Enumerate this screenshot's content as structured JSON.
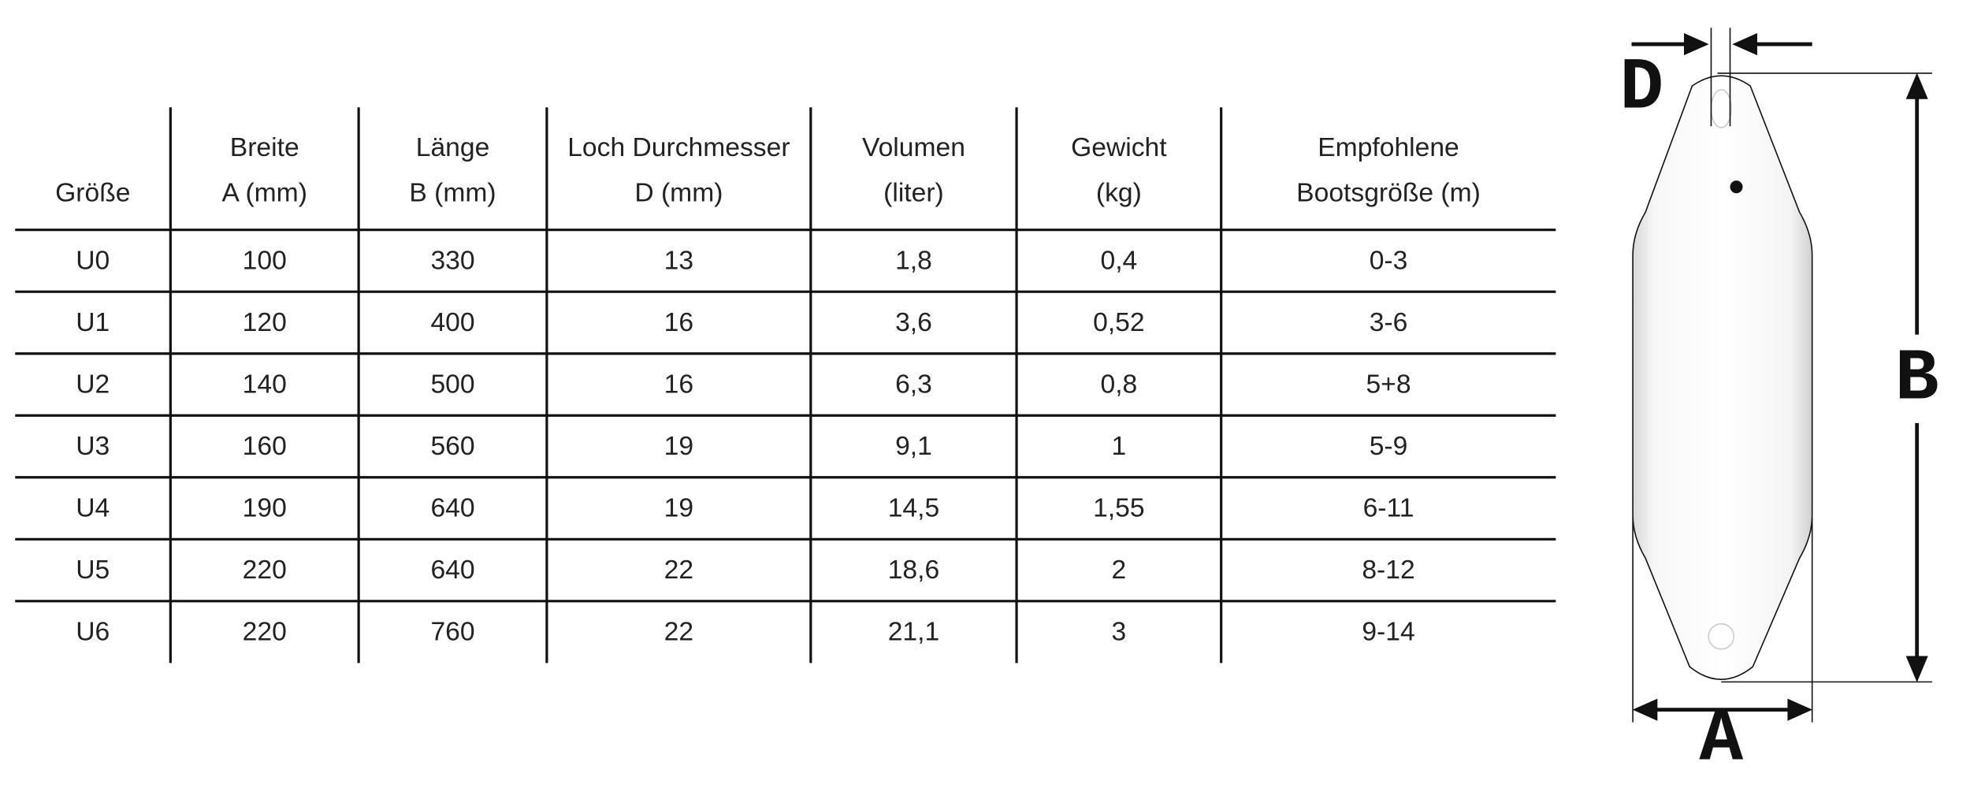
{
  "table": {
    "header": [
      [
        "Größe"
      ],
      [
        "Breite",
        "A (mm)"
      ],
      [
        "Länge",
        "B (mm)"
      ],
      [
        "Loch Durchmesser",
        "D (mm)"
      ],
      [
        "Volumen",
        "(liter)"
      ],
      [
        "Gewicht",
        "(kg)"
      ],
      [
        "Empfohlene",
        "Bootsgröße (m)"
      ]
    ],
    "rows": [
      [
        "U0",
        "100",
        "330",
        "13",
        "1,8",
        "0,4",
        "0-3"
      ],
      [
        "U1",
        "120",
        "400",
        "16",
        "3,6",
        "0,52",
        "3-6"
      ],
      [
        "U2",
        "140",
        "500",
        "16",
        "6,3",
        "0,8",
        "5+8"
      ],
      [
        "U3",
        "160",
        "560",
        "19",
        "9,1",
        "1",
        "5-9"
      ],
      [
        "U4",
        "190",
        "640",
        "19",
        "14,5",
        "1,55",
        "6-11"
      ],
      [
        "U5",
        "220",
        "640",
        "22",
        "18,6",
        "2",
        "8-12"
      ],
      [
        "U6",
        "220",
        "760",
        "22",
        "21,1",
        "3",
        "9-14"
      ]
    ]
  },
  "diagram": {
    "labels": {
      "D": "D",
      "B": "B",
      "A": "A"
    }
  }
}
